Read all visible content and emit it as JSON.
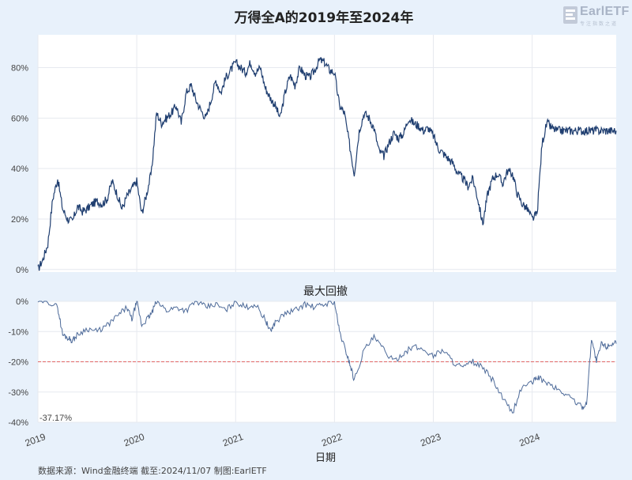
{
  "logo": {
    "brand": "EarlETF",
    "tagline": "专注指数之道"
  },
  "source_note": "数据来源：Wind金融终端 截至:2024/11/07 制图:EarlETF",
  "colors": {
    "line": "#1f3e70",
    "drawdown": "#4d6a99",
    "threshold": "#e06666",
    "panel_bg": "#ffffff",
    "page_bg": "#e8f1fb"
  },
  "chart_data": [
    {
      "type": "line",
      "title": "万得全A的2019年至2024年",
      "ylim": [
        -0.01,
        0.93
      ],
      "y_ticks": [
        0,
        0.2,
        0.4,
        0.6,
        0.8
      ],
      "y_tick_labels": [
        "0%",
        "20%",
        "40%",
        "60%",
        "80%"
      ],
      "grid": true,
      "series": [
        {
          "x": [
            2019.0,
            2019.05,
            2019.1,
            2019.15,
            2019.2,
            2019.25,
            2019.3,
            2019.35,
            2019.4,
            2019.45,
            2019.5,
            2019.55,
            2019.6,
            2019.65,
            2019.7,
            2019.75,
            2019.8,
            2019.85,
            2019.9,
            2019.95,
            2020.0,
            2020.05,
            2020.1,
            2020.15,
            2020.2,
            2020.25,
            2020.3,
            2020.35,
            2020.4,
            2020.45,
            2020.5,
            2020.55,
            2020.6,
            2020.65,
            2020.7,
            2020.75,
            2020.8,
            2020.85,
            2020.9,
            2020.95,
            2021.0,
            2021.05,
            2021.1,
            2021.15,
            2021.2,
            2021.25,
            2021.3,
            2021.35,
            2021.4,
            2021.45,
            2021.5,
            2021.55,
            2021.6,
            2021.65,
            2021.7,
            2021.75,
            2021.8,
            2021.85,
            2021.9,
            2021.95,
            2022.0,
            2022.05,
            2022.1,
            2022.15,
            2022.2,
            2022.25,
            2022.3,
            2022.35,
            2022.4,
            2022.45,
            2022.5,
            2022.55,
            2022.6,
            2022.65,
            2022.7,
            2022.75,
            2022.8,
            2022.85,
            2022.9,
            2022.95,
            2023.0,
            2023.05,
            2023.1,
            2023.15,
            2023.2,
            2023.25,
            2023.3,
            2023.35,
            2023.4,
            2023.45,
            2023.5,
            2023.55,
            2023.6,
            2023.65,
            2023.7,
            2023.75,
            2023.8,
            2023.85,
            2023.9,
            2023.95,
            2024.0,
            2024.05,
            2024.1,
            2024.15,
            2024.2,
            2024.25,
            2024.3,
            2024.35,
            2024.4,
            2024.45,
            2024.5,
            2024.55,
            2024.6,
            2024.65,
            2024.7,
            2024.75,
            2024.8,
            2024.85
          ],
          "values": [
            0.0,
            0.04,
            0.1,
            0.28,
            0.36,
            0.24,
            0.2,
            0.19,
            0.25,
            0.23,
            0.24,
            0.26,
            0.27,
            0.26,
            0.28,
            0.35,
            0.3,
            0.24,
            0.29,
            0.32,
            0.35,
            0.22,
            0.3,
            0.39,
            0.62,
            0.58,
            0.6,
            0.62,
            0.65,
            0.58,
            0.7,
            0.73,
            0.67,
            0.63,
            0.6,
            0.67,
            0.75,
            0.7,
            0.76,
            0.79,
            0.82,
            0.8,
            0.78,
            0.82,
            0.78,
            0.8,
            0.72,
            0.68,
            0.65,
            0.6,
            0.7,
            0.77,
            0.73,
            0.8,
            0.77,
            0.76,
            0.79,
            0.83,
            0.82,
            0.79,
            0.78,
            0.65,
            0.62,
            0.5,
            0.38,
            0.55,
            0.62,
            0.6,
            0.56,
            0.47,
            0.45,
            0.5,
            0.54,
            0.52,
            0.54,
            0.6,
            0.58,
            0.57,
            0.55,
            0.56,
            0.53,
            0.48,
            0.46,
            0.44,
            0.42,
            0.38,
            0.36,
            0.33,
            0.36,
            0.28,
            0.18,
            0.3,
            0.36,
            0.38,
            0.34,
            0.39,
            0.38,
            0.3,
            0.26,
            0.24,
            0.2,
            0.22,
            0.5,
            0.58,
            0.56,
            0.55,
            0.55,
            0.55,
            0.55,
            0.55,
            0.55,
            0.55,
            0.55,
            0.55,
            0.55,
            0.55,
            0.55,
            0.55
          ]
        }
      ]
    },
    {
      "type": "line",
      "title": "最大回撤",
      "xlabel": "日期",
      "ylim": [
        -0.4,
        0.0
      ],
      "y_ticks": [
        0,
        -0.1,
        -0.2,
        -0.3,
        -0.4
      ],
      "y_tick_labels": [
        "0%",
        "-10%",
        "-20%",
        "-30%",
        "-40%"
      ],
      "x_ticks": [
        2019,
        2020,
        2021,
        2022,
        2023,
        2024
      ],
      "x_tick_labels": [
        "2019",
        "2020",
        "2021",
        "2022",
        "2023",
        "2024"
      ],
      "threshold": -0.2,
      "annotation": "-37.17%",
      "grid": true,
      "series": [
        {
          "x": [
            2019.0,
            2019.1,
            2019.2,
            2019.25,
            2019.3,
            2019.35,
            2019.4,
            2019.5,
            2019.6,
            2019.7,
            2019.8,
            2019.9,
            2019.95,
            2020.0,
            2020.05,
            2020.1,
            2020.15,
            2020.2,
            2020.3,
            2020.4,
            2020.5,
            2020.6,
            2020.7,
            2020.8,
            2020.9,
            2021.0,
            2021.1,
            2021.2,
            2021.3,
            2021.35,
            2021.4,
            2021.5,
            2021.6,
            2021.7,
            2021.8,
            2021.9,
            2022.0,
            2022.05,
            2022.1,
            2022.15,
            2022.2,
            2022.3,
            2022.4,
            2022.5,
            2022.6,
            2022.7,
            2022.8,
            2022.9,
            2023.0,
            2023.1,
            2023.2,
            2023.3,
            2023.4,
            2023.5,
            2023.6,
            2023.7,
            2023.8,
            2023.9,
            2024.0,
            2024.05,
            2024.1,
            2024.2,
            2024.3,
            2024.4,
            2024.5,
            2024.55,
            2024.6,
            2024.65,
            2024.7,
            2024.75,
            2024.8,
            2024.85
          ],
          "values": [
            0.0,
            0.0,
            -0.02,
            -0.11,
            -0.12,
            -0.13,
            -0.11,
            -0.09,
            -0.1,
            -0.08,
            -0.05,
            -0.02,
            -0.06,
            0.0,
            -0.08,
            -0.06,
            -0.04,
            0.0,
            -0.03,
            -0.02,
            -0.03,
            0.0,
            -0.02,
            -0.01,
            -0.03,
            0.0,
            -0.02,
            -0.01,
            -0.06,
            -0.1,
            -0.07,
            -0.04,
            -0.03,
            -0.01,
            -0.02,
            -0.01,
            0.0,
            -0.1,
            -0.15,
            -0.2,
            -0.26,
            -0.16,
            -0.12,
            -0.16,
            -0.2,
            -0.17,
            -0.15,
            -0.16,
            -0.18,
            -0.16,
            -0.2,
            -0.22,
            -0.2,
            -0.22,
            -0.26,
            -0.32,
            -0.37,
            -0.28,
            -0.27,
            -0.25,
            -0.26,
            -0.28,
            -0.3,
            -0.32,
            -0.35,
            -0.34,
            -0.12,
            -0.2,
            -0.14,
            -0.15,
            -0.14,
            -0.14
          ]
        }
      ]
    }
  ]
}
